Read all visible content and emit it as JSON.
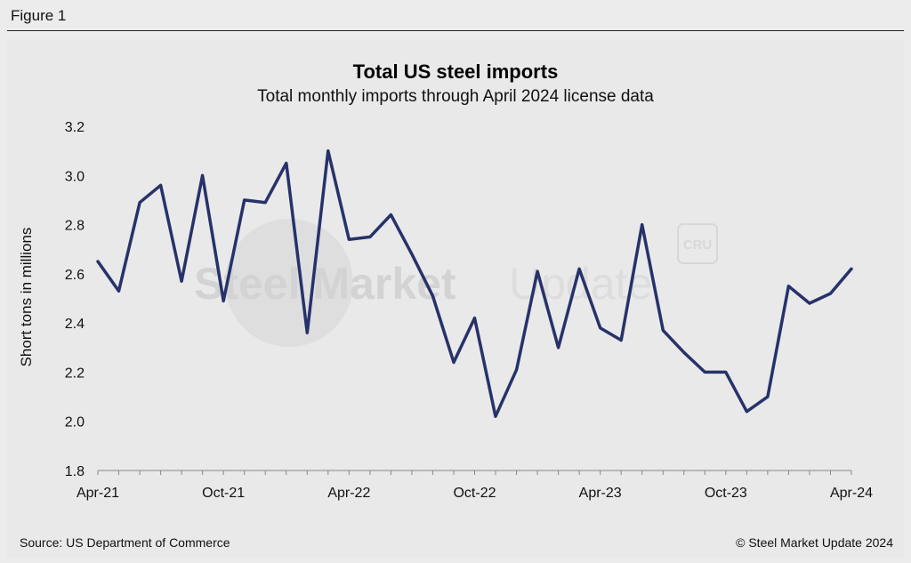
{
  "figure_label": "Figure 1",
  "source": "Source: US Department of Commerce",
  "copyright": "© Steel Market Update 2024",
  "watermark": {
    "brand_bold": "Steel Market",
    "brand_light": "Update",
    "logo": "CRU"
  },
  "colors": {
    "line": "#27326a",
    "background": "#e9e9e9",
    "axis": "#888888"
  },
  "chart_data": {
    "type": "line",
    "title": "Total US steel imports",
    "subtitle": "Total monthly imports through April 2024 license data",
    "xlabel": "",
    "ylabel": "Short tons in millions",
    "ylim": [
      1.8,
      3.2
    ],
    "yticks": [
      1.8,
      2.0,
      2.2,
      2.4,
      2.6,
      2.8,
      3.0,
      3.2
    ],
    "ytick_labels": [
      "1.8",
      "2.0",
      "2.2",
      "2.4",
      "2.6",
      "2.8",
      "3.0",
      "3.2"
    ],
    "xtick_indices": [
      0,
      6,
      12,
      18,
      24,
      30,
      36
    ],
    "xtick_labels": [
      "Apr-21",
      "Oct-21",
      "Apr-22",
      "Oct-22",
      "Apr-23",
      "Oct-23",
      "Apr-24"
    ],
    "x": [
      "Apr-21",
      "May-21",
      "Jun-21",
      "Jul-21",
      "Aug-21",
      "Sep-21",
      "Oct-21",
      "Nov-21",
      "Dec-21",
      "Jan-22",
      "Feb-22",
      "Mar-22",
      "Apr-22",
      "May-22",
      "Jun-22",
      "Jul-22",
      "Aug-22",
      "Sep-22",
      "Oct-22",
      "Nov-22",
      "Dec-22",
      "Jan-23",
      "Feb-23",
      "Mar-23",
      "Apr-23",
      "May-23",
      "Jun-23",
      "Jul-23",
      "Aug-23",
      "Sep-23",
      "Oct-23",
      "Nov-23",
      "Dec-23",
      "Jan-24",
      "Feb-24",
      "Mar-24",
      "Apr-24"
    ],
    "series": [
      {
        "name": "Total US steel imports",
        "values": [
          2.65,
          2.53,
          2.89,
          2.96,
          2.57,
          3.0,
          2.49,
          2.9,
          2.89,
          3.05,
          2.36,
          3.1,
          2.74,
          2.75,
          2.84,
          2.68,
          2.51,
          2.24,
          2.42,
          2.02,
          2.21,
          2.61,
          2.3,
          2.62,
          2.38,
          2.33,
          2.8,
          2.37,
          2.28,
          2.2,
          2.2,
          2.04,
          2.1,
          2.55,
          2.48,
          2.52,
          2.62
        ]
      }
    ]
  }
}
